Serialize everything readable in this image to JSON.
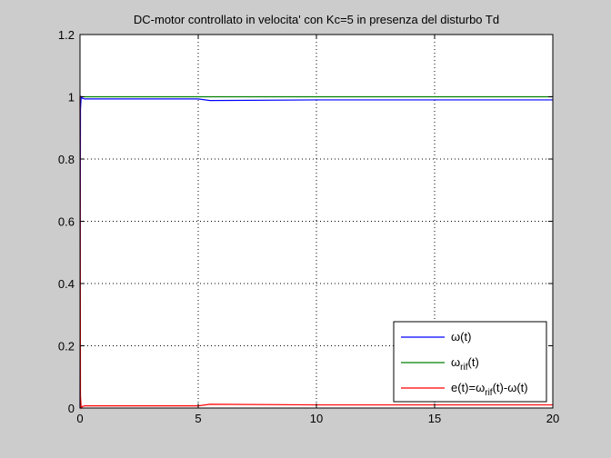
{
  "chart_data": {
    "type": "line",
    "title": "DC-motor controllato in velocita' con Kc=5 in presenza del disturbo Td",
    "xlabel": "",
    "ylabel": "",
    "xlim": [
      0,
      20
    ],
    "ylim": [
      0,
      1.2
    ],
    "x_ticks": [
      "0",
      "5",
      "10",
      "15",
      "20"
    ],
    "y_ticks": [
      "0",
      "0.2",
      "0.4",
      "0.6",
      "0.8",
      "1",
      "1.2"
    ],
    "grid": true,
    "legend_position": "bottom-right",
    "series": [
      {
        "name": "ω(t)",
        "legend_base": "ω",
        "legend_sub": "",
        "legend_tail": "(t)",
        "color": "#0000ff",
        "x": [
          0,
          0.02,
          0.05,
          0.1,
          0.2,
          1,
          5,
          5.5,
          10,
          15,
          20
        ],
        "y": [
          0,
          0.96,
          1.0,
          0.995,
          0.993,
          0.993,
          0.993,
          0.988,
          0.99,
          0.99,
          0.99
        ]
      },
      {
        "name": "ωrif(t)",
        "legend_base": "ω",
        "legend_sub": "rif",
        "legend_tail": "(t)",
        "color": "#008000",
        "x": [
          0,
          20
        ],
        "y": [
          1.0,
          1.0
        ]
      },
      {
        "name": "e(t)=ωrif(t)-ω(t)",
        "legend_base": "e(t)=ω",
        "legend_sub": "rif",
        "legend_tail": "(t)-ω(t)",
        "color": "#ff0000",
        "x": [
          0,
          0.02,
          0.05,
          0.1,
          0.2,
          1,
          5,
          5.5,
          10,
          15,
          20
        ],
        "y": [
          1.0,
          0.04,
          0.0,
          0.005,
          0.007,
          0.007,
          0.007,
          0.012,
          0.01,
          0.01,
          0.01
        ]
      }
    ]
  }
}
